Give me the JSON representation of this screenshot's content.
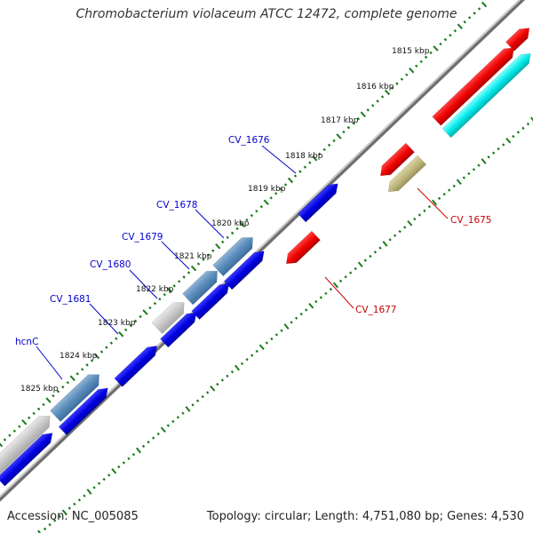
{
  "title": "Chromobacterium violaceum ATCC 12472, complete genome",
  "footer": {
    "accession": "Accession: NC_005085",
    "summary": "Topology: circular; Length: 4,751,080 bp; Genes: 4,530"
  },
  "colors": {
    "backbone": "#808080",
    "ticks": "#1a7a1a",
    "label_plus": "#0000cc",
    "label_minus": "#cc0000"
  },
  "kbp_labels": [
    "1815 kbp",
    "1816 kbp",
    "1817 kbp",
    "1818 kbp",
    "1819 kbp",
    "1820 kbp",
    "1821 kbp",
    "1822 kbp",
    "1823 kbp",
    "1824 kbp",
    "1825 kbp"
  ],
  "gene_labels": {
    "cv1676": "CV_1676",
    "cv1678": "CV_1678",
    "cv1679": "CV_1679",
    "cv1680": "CV_1680",
    "cv1681": "CV_1681",
    "hcnC": "hcnC",
    "cv1675": "CV_1675",
    "cv1677": "CV_1677"
  }
}
